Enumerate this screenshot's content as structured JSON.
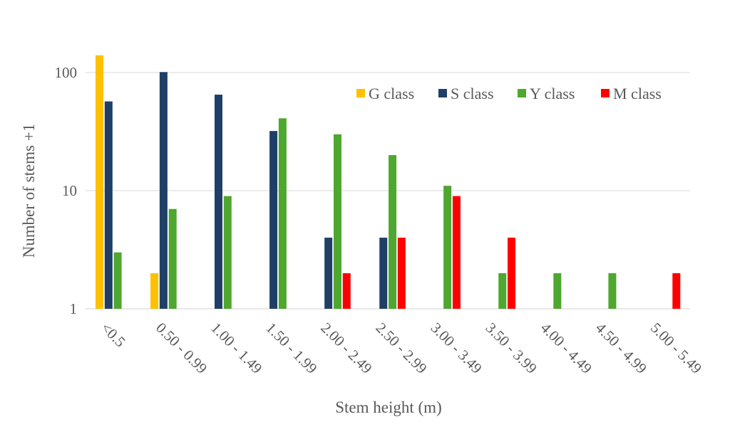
{
  "chart_data": {
    "type": "bar",
    "title": "",
    "xlabel": "Stem height (m)",
    "ylabel": "Number of stems +1",
    "yscale": "log",
    "ylim": [
      1,
      150
    ],
    "yticks": [
      1,
      10,
      100
    ],
    "ytick_labels": [
      "1",
      "10",
      "100"
    ],
    "grid": true,
    "legend_position": "top-right",
    "categories": [
      "<0.5",
      "0.50 - 0.99",
      "1.00 - 1.49",
      "1.50 - 1.99",
      "2.00 - 2.49",
      "2.50 - 2.99",
      "3.00 - 3.49",
      "3.50 - 3.99",
      "4.00 - 4.49",
      "4.50 - 4.99",
      "5.00 - 5.49"
    ],
    "series": [
      {
        "name": "G class",
        "color": "#ffc000",
        "values": [
          140,
          2,
          1,
          1,
          1,
          1,
          1,
          1,
          1,
          1,
          1
        ]
      },
      {
        "name": "S class",
        "color": "#1f3f66",
        "values": [
          57,
          101,
          65,
          32,
          4,
          4,
          1,
          1,
          1,
          1,
          1
        ]
      },
      {
        "name": "Y class",
        "color": "#4ea72e",
        "values": [
          3,
          7,
          9,
          41,
          30,
          20,
          11,
          2,
          2,
          2,
          1
        ]
      },
      {
        "name": "M class",
        "color": "#ff0000",
        "values": [
          1,
          1,
          1,
          1,
          2,
          4,
          9,
          4,
          1,
          1,
          2
        ]
      }
    ]
  }
}
